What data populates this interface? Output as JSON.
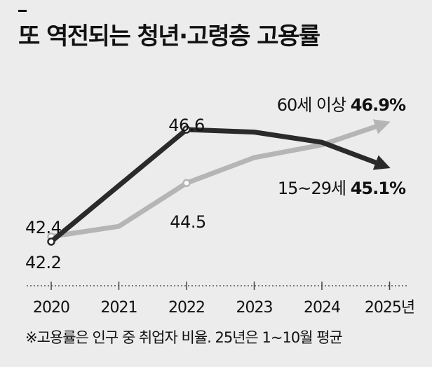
{
  "title": "또 역전되는 청년·고령층 고용률",
  "footnote": "※고용률은 인구 중 취업자 비율. 25년은 1~10월 평균",
  "chart_data": {
    "type": "line",
    "title": "또 역전되는 청년·고령층 고용률",
    "xlabel": "",
    "ylabel": "",
    "categories": [
      "2020",
      "2021",
      "2022",
      "2023",
      "2024",
      "2025년"
    ],
    "ylim": [
      41.0,
      48.5
    ],
    "grid": false,
    "series": [
      {
        "name": "60세 이상",
        "values": [
          42.4,
          42.8,
          44.5,
          45.5,
          46.0,
          46.9
        ],
        "color": "#b5b5b5",
        "legend_label": "60세 이상",
        "legend_value": "46.9%",
        "labels": [
          {
            "index": 0,
            "text": "42.4",
            "position": "above"
          },
          {
            "index": 2,
            "text": "44.5",
            "position": "below"
          }
        ]
      },
      {
        "name": "15~29세",
        "values": [
          42.2,
          44.4,
          46.6,
          46.5,
          46.1,
          45.1
        ],
        "color": "#2a2a2a",
        "legend_label": "15~29세",
        "legend_value": "45.1%",
        "labels": [
          {
            "index": 0,
            "text": "42.2",
            "position": "below"
          },
          {
            "index": 2,
            "text": "46.6",
            "position": "above"
          }
        ]
      }
    ]
  }
}
